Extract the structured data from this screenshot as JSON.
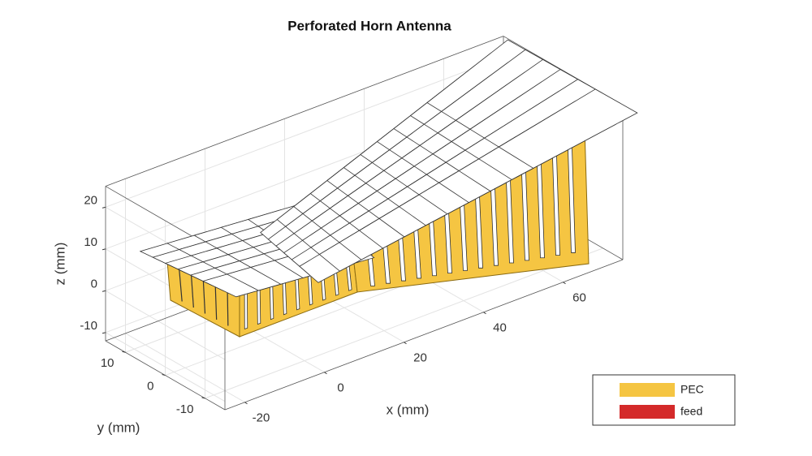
{
  "chart_data": {
    "type": "geometry3d",
    "title": "Perforated Horn Antenna",
    "x_label": "x (mm)",
    "y_label": "y (mm)",
    "z_label": "z (mm)",
    "xlim": [
      -25,
      75
    ],
    "ylim": [
      -15,
      15
    ],
    "zlim": [
      -12,
      25
    ],
    "xticks": [
      -20,
      0,
      20,
      40,
      60
    ],
    "yticks": [
      -10,
      0,
      10
    ],
    "zticks": [
      -10,
      0,
      10,
      20
    ],
    "grid": true,
    "series": [
      {
        "name": "PEC",
        "color": "#f5c542"
      },
      {
        "name": "feed",
        "color": "#d42a2a"
      }
    ]
  }
}
